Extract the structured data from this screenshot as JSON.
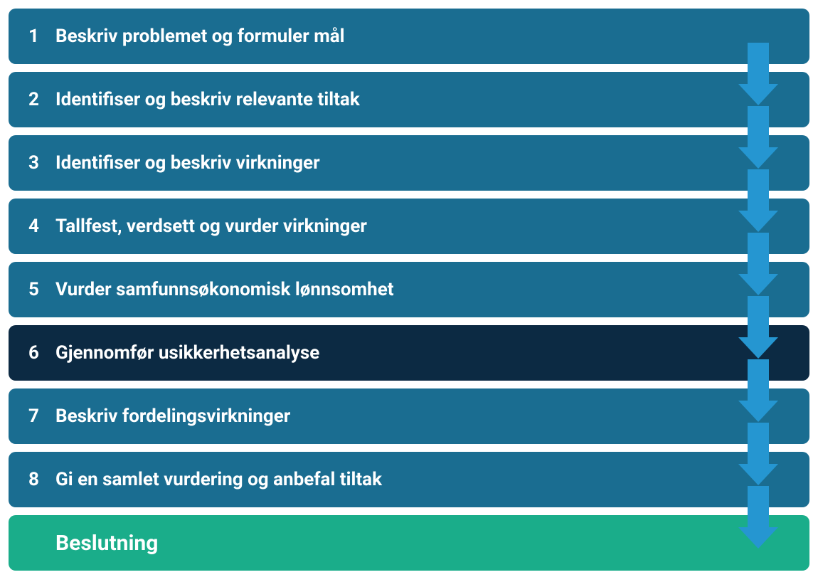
{
  "diagram": {
    "type": "process-flow",
    "background_color": "#ffffff",
    "step_default_bg": "#1a6d91",
    "step_highlight_bg": "#0c2a43",
    "final_step_bg": "#1aad8a",
    "text_color": "#ffffff",
    "arrow_color": "#2596d1",
    "border_radius": 10,
    "step_height": 78,
    "step_gap": 11,
    "font_size_step": 26,
    "font_size_final": 30,
    "font_weight": 700,
    "steps": [
      {
        "number": "1",
        "label": "Beskriv problemet og formuler mål",
        "highlight": false
      },
      {
        "number": "2",
        "label": "Identifiser og beskriv  relevante tiltak",
        "highlight": false
      },
      {
        "number": "3",
        "label": "Identifiser og beskriv virkninger",
        "highlight": false
      },
      {
        "number": "4",
        "label": "Tallfest, verdsett og vurder virkninger",
        "highlight": false
      },
      {
        "number": "5",
        "label": "Vurder samfunnsøkonomisk lønnsomhet",
        "highlight": false
      },
      {
        "number": "6",
        "label": "Gjennomfør usikkerhetsanalyse",
        "highlight": true
      },
      {
        "number": "7",
        "label": "Beskriv fordelingsvirkninger",
        "highlight": false
      },
      {
        "number": "8",
        "label": "Gi en samlet vurdering  og anbefal tiltak",
        "highlight": false
      }
    ],
    "final_step": {
      "label": "Beslutning"
    },
    "arrow_count": 8
  }
}
